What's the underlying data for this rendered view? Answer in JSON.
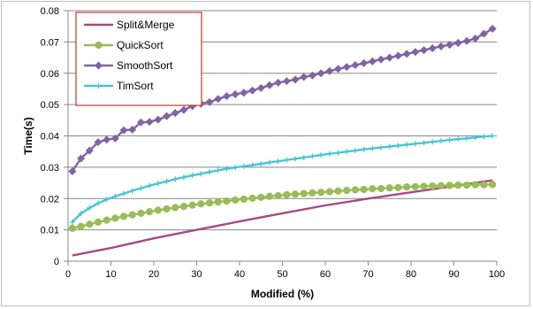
{
  "chart_data": {
    "type": "line",
    "xlabel": "Modified (%)",
    "ylabel": "Time(s)",
    "xlim": [
      0,
      100
    ],
    "ylim": [
      0,
      0.08
    ],
    "x_ticks": [
      "0",
      "10",
      "20",
      "30",
      "40",
      "50",
      "60",
      "70",
      "80",
      "90",
      "100"
    ],
    "y_ticks": [
      "0",
      "0.01",
      "0.02",
      "0.03",
      "0.04",
      "0.05",
      "0.06",
      "0.07",
      "0.08"
    ],
    "grid": "horizontal",
    "legend_position": "top-left",
    "series": [
      {
        "name": "Split&Merge",
        "color": "#a94a7f",
        "marker": "none",
        "x": [
          1,
          10,
          20,
          30,
          40,
          50,
          60,
          70,
          80,
          90,
          99
        ],
        "y": [
          0.0018,
          0.0042,
          0.0073,
          0.01,
          0.0127,
          0.0153,
          0.0178,
          0.02,
          0.022,
          0.024,
          0.0258
        ]
      },
      {
        "name": "QuickSort",
        "color": "#9bbb59",
        "marker": "circle",
        "x": [
          1,
          3,
          5,
          7,
          9,
          11,
          13,
          15,
          17,
          19,
          21,
          23,
          25,
          27,
          29,
          31,
          33,
          35,
          37,
          39,
          41,
          43,
          45,
          47,
          49,
          51,
          53,
          55,
          57,
          59,
          61,
          63,
          65,
          67,
          69,
          71,
          73,
          75,
          77,
          79,
          81,
          83,
          85,
          87,
          89,
          91,
          93,
          95,
          97,
          99
        ],
        "y": [
          0.0105,
          0.0111,
          0.0118,
          0.0125,
          0.0131,
          0.0137,
          0.0143,
          0.0148,
          0.0153,
          0.0158,
          0.0163,
          0.0167,
          0.0171,
          0.0175,
          0.0179,
          0.0183,
          0.0186,
          0.0189,
          0.0192,
          0.0195,
          0.0198,
          0.0201,
          0.0204,
          0.0207,
          0.0209,
          0.0212,
          0.0214,
          0.0216,
          0.0218,
          0.022,
          0.0222,
          0.0224,
          0.0226,
          0.0228,
          0.0229,
          0.0231,
          0.0232,
          0.0234,
          0.0235,
          0.0237,
          0.0238,
          0.0239,
          0.024,
          0.0241,
          0.0242,
          0.0243,
          0.0243,
          0.0244,
          0.0244,
          0.0245
        ]
      },
      {
        "name": "SmoothSort",
        "color": "#8064a2",
        "marker": "diamond",
        "x": [
          1,
          3,
          5,
          7,
          9,
          11,
          13,
          15,
          17,
          19,
          21,
          23,
          25,
          27,
          29,
          31,
          33,
          35,
          37,
          39,
          41,
          43,
          45,
          47,
          49,
          51,
          53,
          55,
          57,
          59,
          61,
          63,
          65,
          67,
          69,
          71,
          73,
          75,
          77,
          79,
          81,
          83,
          85,
          87,
          89,
          91,
          93,
          95,
          97,
          99
        ],
        "y": [
          0.0287,
          0.0328,
          0.0353,
          0.038,
          0.0388,
          0.0392,
          0.0418,
          0.042,
          0.0443,
          0.0445,
          0.0452,
          0.0463,
          0.0473,
          0.0483,
          0.0495,
          0.0503,
          0.0508,
          0.0518,
          0.0527,
          0.0533,
          0.0538,
          0.0545,
          0.0553,
          0.0562,
          0.057,
          0.0575,
          0.058,
          0.0588,
          0.0593,
          0.06,
          0.0607,
          0.0614,
          0.062,
          0.0626,
          0.0632,
          0.0638,
          0.0644,
          0.065,
          0.0656,
          0.0662,
          0.0668,
          0.0674,
          0.068,
          0.0686,
          0.0691,
          0.0697,
          0.0703,
          0.0711,
          0.0726,
          0.0742
        ]
      },
      {
        "name": "TimSort",
        "color": "#4bc4d3",
        "marker": "plus",
        "x": [
          1,
          3,
          5,
          7,
          9,
          11,
          13,
          15,
          17,
          19,
          21,
          23,
          25,
          27,
          29,
          31,
          33,
          35,
          37,
          39,
          41,
          43,
          45,
          47,
          49,
          51,
          53,
          55,
          57,
          59,
          61,
          63,
          65,
          67,
          69,
          71,
          73,
          75,
          77,
          79,
          81,
          83,
          85,
          87,
          89,
          91,
          93,
          95,
          97,
          99
        ],
        "y": [
          0.0125,
          0.0152,
          0.017,
          0.0185,
          0.0197,
          0.0207,
          0.0216,
          0.0225,
          0.0233,
          0.0241,
          0.0248,
          0.0255,
          0.0262,
          0.0268,
          0.0274,
          0.0279,
          0.0285,
          0.029,
          0.0295,
          0.0299,
          0.0303,
          0.0307,
          0.0311,
          0.0315,
          0.0319,
          0.0323,
          0.0327,
          0.0331,
          0.0335,
          0.0339,
          0.0343,
          0.0346,
          0.035,
          0.0353,
          0.0357,
          0.036,
          0.0363,
          0.0366,
          0.0369,
          0.0372,
          0.0375,
          0.0378,
          0.0381,
          0.0384,
          0.0387,
          0.039,
          0.0392,
          0.0395,
          0.0398,
          0.04
        ]
      }
    ]
  }
}
